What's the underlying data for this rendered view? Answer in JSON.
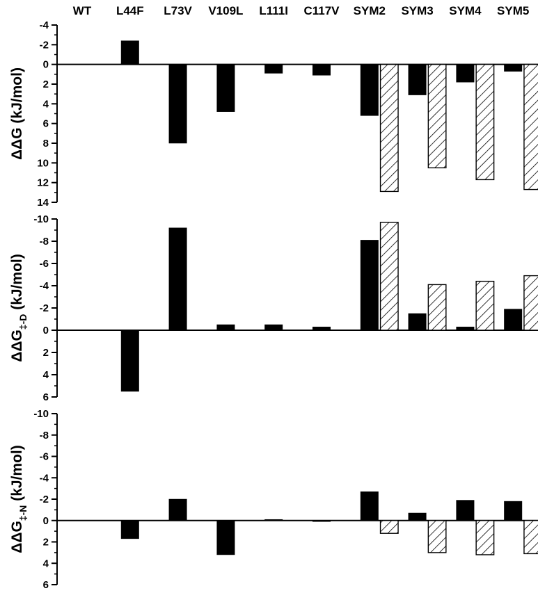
{
  "chart_data": {
    "type": "bar",
    "categories": [
      "WT",
      "L44F",
      "L73V",
      "V109L",
      "L111I",
      "C117V",
      "SYM2",
      "SYM3",
      "SYM4",
      "SYM5"
    ],
    "legend": "none",
    "grid": false,
    "panels": [
      {
        "id": "ddG",
        "ylabel_main": "ΔΔG (kJ/mol)",
        "ylabel_base": "",
        "ylabel_sub": "",
        "ylabel_tail": "",
        "ylim": [
          -4,
          14
        ],
        "inverted": true,
        "ticks": [
          -4,
          -2,
          0,
          2,
          4,
          6,
          8,
          10,
          12,
          14
        ],
        "series": [
          {
            "style": "solid",
            "values": [
              0,
              -2.4,
              8.0,
              4.8,
              0.9,
              1.1,
              5.2,
              3.1,
              1.8,
              0.7
            ]
          },
          {
            "style": "hatched",
            "values": [
              null,
              null,
              null,
              null,
              null,
              null,
              12.9,
              10.5,
              11.7,
              12.7
            ]
          }
        ]
      },
      {
        "id": "ddG-TS-D",
        "ylabel_main": "",
        "ylabel_base": "ΔΔG",
        "ylabel_sub": "‡-D",
        "ylabel_tail": " (kJ/mol)",
        "ylim": [
          -10,
          6
        ],
        "inverted": true,
        "ticks": [
          -10,
          -8,
          -6,
          -4,
          -2,
          0,
          2,
          4,
          6
        ],
        "series": [
          {
            "style": "solid",
            "values": [
              0,
              5.5,
              -9.2,
              -0.5,
              -0.5,
              -0.3,
              -8.1,
              -1.5,
              -0.3,
              -1.9
            ]
          },
          {
            "style": "hatched",
            "values": [
              null,
              null,
              null,
              null,
              null,
              null,
              -9.7,
              -4.1,
              -4.4,
              -4.9
            ]
          }
        ]
      },
      {
        "id": "ddG-TS-N",
        "ylabel_main": "",
        "ylabel_base": "ΔΔG",
        "ylabel_sub": "‡-N",
        "ylabel_tail": " (kJ/mol)",
        "ylim": [
          -10,
          6
        ],
        "inverted": true,
        "ticks": [
          -10,
          -8,
          -6,
          -4,
          -2,
          0,
          2,
          4,
          6
        ],
        "series": [
          {
            "style": "solid",
            "values": [
              0,
              1.7,
              -2.0,
              3.2,
              -0.1,
              0.1,
              -2.7,
              -0.7,
              -1.9,
              -1.8
            ]
          },
          {
            "style": "hatched",
            "values": [
              null,
              null,
              null,
              null,
              null,
              null,
              1.2,
              3.0,
              3.2,
              3.1
            ]
          }
        ]
      }
    ]
  }
}
